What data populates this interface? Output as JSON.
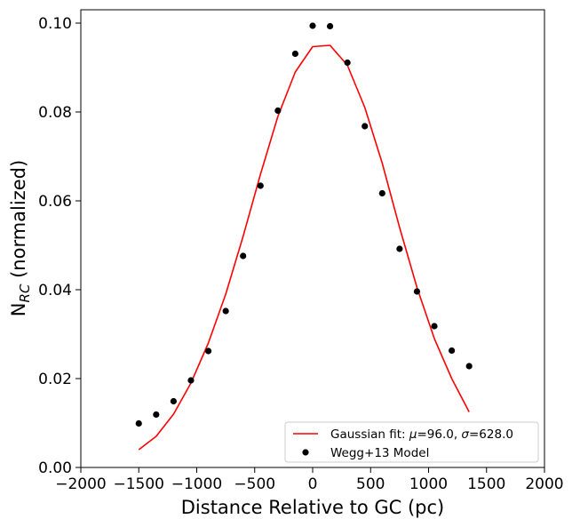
{
  "chart_data": {
    "type": "scatter",
    "xlabel": "Distance Relative to GC (pc)",
    "ylabel_main": "N",
    "ylabel_sub": "RC",
    "ylabel_rest": " (normalized)",
    "xlim": [
      -2000,
      2000
    ],
    "ylim": [
      0.0,
      0.103
    ],
    "x_ticks": [
      -2000,
      -1500,
      -1000,
      -500,
      0,
      500,
      1000,
      1500,
      2000
    ],
    "x_tick_labels": [
      "−2000",
      "−1500",
      "−1000",
      "−500",
      "0",
      "500",
      "1000",
      "1500",
      "2000"
    ],
    "y_ticks": [
      0.0,
      0.02,
      0.04,
      0.06,
      0.08,
      0.1
    ],
    "y_tick_labels": [
      "0.00",
      "0.02",
      "0.04",
      "0.06",
      "0.08",
      "0.10"
    ],
    "grid": false,
    "legend_position": "bottom-right",
    "series": [
      {
        "name_prefix": "Gaussian fit: ",
        "name_mu": "μ",
        "name_mid": "=96.0, ",
        "name_sigma": "σ",
        "name_suffix": "=628.0",
        "type": "line",
        "color": "#ff0000",
        "x": [
          -1500,
          -1350,
          -1200,
          -1050,
          -900,
          -750,
          -600,
          -450,
          -300,
          -150,
          0,
          150,
          300,
          450,
          600,
          750,
          900,
          1050,
          1200,
          1350
        ],
        "y": [
          0.004,
          0.007,
          0.012,
          0.019,
          0.028,
          0.039,
          0.052,
          0.066,
          0.079,
          0.089,
          0.0947,
          0.095,
          0.0905,
          0.081,
          0.0685,
          0.054,
          0.0405,
          0.029,
          0.02,
          0.0125
        ]
      },
      {
        "name": "Wegg+13 Model",
        "type": "scatter",
        "color": "#000000",
        "x": [
          -1500,
          -1350,
          -1200,
          -1050,
          -900,
          -750,
          -600,
          -450,
          -300,
          -150,
          0,
          150,
          300,
          450,
          600,
          750,
          900,
          1050,
          1200,
          1350
        ],
        "y": [
          0.0099,
          0.0119,
          0.0149,
          0.0196,
          0.0262,
          0.0352,
          0.0476,
          0.0634,
          0.0803,
          0.0931,
          0.0994,
          0.0993,
          0.0911,
          0.0768,
          0.0617,
          0.0492,
          0.0396,
          0.0318,
          0.0263,
          0.0228
        ]
      }
    ]
  }
}
